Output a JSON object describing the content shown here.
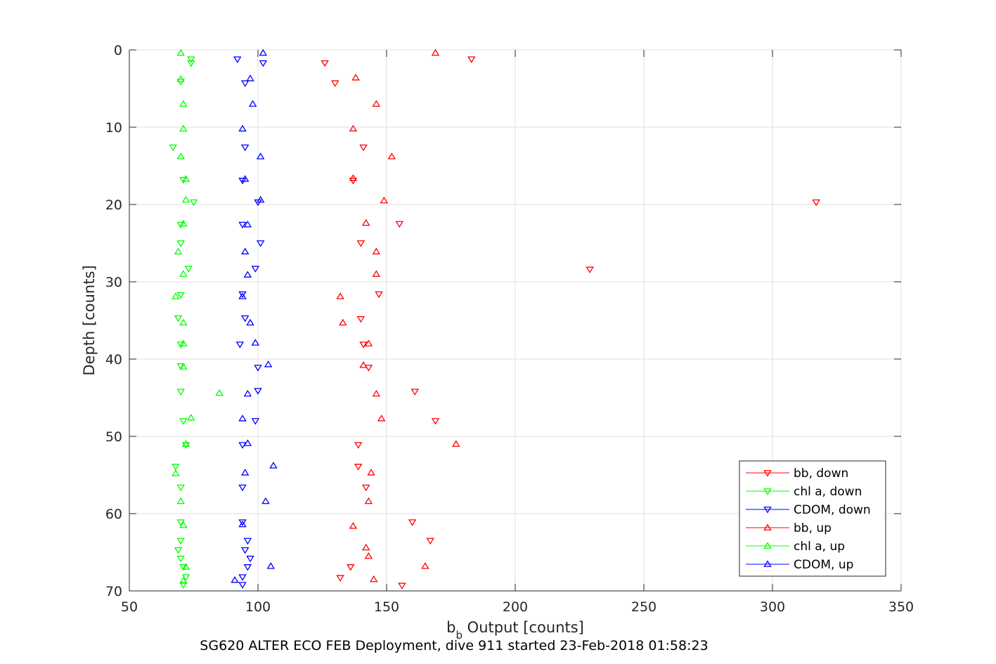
{
  "chart_data": {
    "type": "scatter",
    "xlabel_main": "b",
    "xlabel_sub": "b",
    "xlabel_rest": " Output [counts]",
    "ylabel": "Depth [counts]",
    "subtitle": "SG620 ALTER ECO FEB Deployment, dive 911 started 23-Feb-2018 01:58:23",
    "xlim": [
      50,
      350
    ],
    "ylim": [
      0,
      70
    ],
    "y_reversed": true,
    "xticks": [
      50,
      100,
      150,
      200,
      250,
      300,
      350
    ],
    "yticks": [
      0,
      10,
      20,
      30,
      40,
      50,
      60,
      70
    ],
    "grid": true,
    "legend_position": "bottom-right",
    "series": [
      {
        "name": "bb, down",
        "color": "#ff0000",
        "marker": "triangle-down",
        "points": [
          [
            183,
            1.2
          ],
          [
            126,
            1.7
          ],
          [
            130,
            4.3
          ],
          [
            141,
            12.6
          ],
          [
            137,
            16.9
          ],
          [
            317,
            19.7
          ],
          [
            155,
            22.5
          ],
          [
            140,
            25.0
          ],
          [
            229,
            28.4
          ],
          [
            147,
            31.6
          ],
          [
            140,
            34.8
          ],
          [
            141,
            38.1
          ],
          [
            143,
            41.1
          ],
          [
            161,
            44.2
          ],
          [
            169,
            48.0
          ],
          [
            139,
            51.1
          ],
          [
            139,
            53.9
          ],
          [
            142,
            56.6
          ],
          [
            160,
            61.1
          ],
          [
            167,
            63.5
          ],
          [
            136,
            66.9
          ],
          [
            132,
            68.3
          ],
          [
            156,
            69.3
          ]
        ]
      },
      {
        "name": "chl a, down",
        "color": "#00ff00",
        "marker": "triangle-down",
        "points": [
          [
            74,
            1.2
          ],
          [
            74,
            1.7
          ],
          [
            70,
            4.1
          ],
          [
            67,
            12.6
          ],
          [
            71,
            16.8
          ],
          [
            75,
            19.7
          ],
          [
            70,
            22.6
          ],
          [
            70,
            25.0
          ],
          [
            73,
            28.3
          ],
          [
            70,
            31.7
          ],
          [
            69,
            34.7
          ],
          [
            70,
            38.1
          ],
          [
            70,
            40.9
          ],
          [
            70,
            44.2
          ],
          [
            71,
            48.0
          ],
          [
            72,
            51.1
          ],
          [
            68,
            53.9
          ],
          [
            70,
            56.6
          ],
          [
            70,
            61.1
          ],
          [
            70,
            63.5
          ],
          [
            69,
            64.7
          ],
          [
            70,
            65.8
          ],
          [
            71,
            66.9
          ],
          [
            72,
            68.2
          ],
          [
            71,
            69.2
          ]
        ]
      },
      {
        "name": "CDOM, down",
        "color": "#0000ff",
        "marker": "triangle-down",
        "points": [
          [
            92,
            1.2
          ],
          [
            102,
            1.7
          ],
          [
            95,
            4.3
          ],
          [
            95,
            12.6
          ],
          [
            94,
            16.9
          ],
          [
            100,
            19.7
          ],
          [
            94,
            22.6
          ],
          [
            101,
            25.0
          ],
          [
            99,
            28.3
          ],
          [
            94,
            31.6
          ],
          [
            95,
            34.7
          ],
          [
            93,
            38.1
          ],
          [
            100,
            41.1
          ],
          [
            100,
            44.1
          ],
          [
            99,
            48.0
          ],
          [
            94,
            51.1
          ],
          [
            94,
            56.6
          ],
          [
            94,
            61.1
          ],
          [
            96,
            63.5
          ],
          [
            95,
            64.7
          ],
          [
            97,
            65.8
          ],
          [
            96,
            66.9
          ],
          [
            94,
            68.2
          ],
          [
            94,
            69.2
          ]
        ]
      },
      {
        "name": "bb, up",
        "color": "#ff0000",
        "marker": "triangle-up",
        "points": [
          [
            169,
            0.4
          ],
          [
            138,
            3.6
          ],
          [
            146,
            7.0
          ],
          [
            137,
            10.2
          ],
          [
            152,
            13.8
          ],
          [
            137,
            16.6
          ],
          [
            149,
            19.5
          ],
          [
            142,
            22.4
          ],
          [
            146,
            26.1
          ],
          [
            146,
            29.0
          ],
          [
            132,
            31.9
          ],
          [
            133,
            35.3
          ],
          [
            143,
            38.0
          ],
          [
            141,
            40.8
          ],
          [
            146,
            44.5
          ],
          [
            148,
            47.7
          ],
          [
            177,
            51.0
          ],
          [
            144,
            54.7
          ],
          [
            143,
            58.4
          ],
          [
            137,
            61.6
          ],
          [
            142,
            64.4
          ],
          [
            143,
            65.5
          ],
          [
            165,
            66.8
          ],
          [
            145,
            68.5
          ]
        ]
      },
      {
        "name": "chl a, up",
        "color": "#00ff00",
        "marker": "triangle-up",
        "points": [
          [
            70,
            0.4
          ],
          [
            70,
            3.8
          ],
          [
            71,
            7.0
          ],
          [
            71,
            10.2
          ],
          [
            70,
            13.8
          ],
          [
            72,
            16.7
          ],
          [
            72,
            19.4
          ],
          [
            71,
            22.5
          ],
          [
            69,
            26.1
          ],
          [
            71,
            29.0
          ],
          [
            68,
            31.9
          ],
          [
            71,
            35.3
          ],
          [
            71,
            38.0
          ],
          [
            71,
            41.0
          ],
          [
            85,
            44.4
          ],
          [
            74,
            47.6
          ],
          [
            72,
            51.0
          ],
          [
            68,
            54.8
          ],
          [
            70,
            58.4
          ],
          [
            71,
            61.5
          ],
          [
            72,
            66.9
          ],
          [
            71,
            68.7
          ]
        ]
      },
      {
        "name": "CDOM, up",
        "color": "#0000ff",
        "marker": "triangle-up",
        "points": [
          [
            102,
            0.4
          ],
          [
            97,
            3.7
          ],
          [
            98,
            7.0
          ],
          [
            94,
            10.2
          ],
          [
            101,
            13.8
          ],
          [
            95,
            16.7
          ],
          [
            101,
            19.4
          ],
          [
            96,
            22.6
          ],
          [
            95,
            26.1
          ],
          [
            96,
            29.1
          ],
          [
            94,
            31.9
          ],
          [
            97,
            35.3
          ],
          [
            99,
            37.9
          ],
          [
            104,
            40.7
          ],
          [
            96,
            44.5
          ],
          [
            94,
            47.7
          ],
          [
            96,
            50.9
          ],
          [
            106,
            53.8
          ],
          [
            95,
            54.7
          ],
          [
            103,
            58.4
          ],
          [
            94,
            61.4
          ],
          [
            105,
            66.8
          ],
          [
            91,
            68.6
          ]
        ]
      }
    ]
  }
}
